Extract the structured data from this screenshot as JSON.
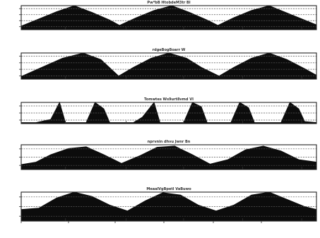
{
  "chart_data": [
    {
      "type": "area",
      "title": "Pw*bB HtobdeM3tr Bl",
      "y_ticks": [
        "",
        "",
        "",
        ""
      ],
      "ylim": [
        0,
        1
      ],
      "grid": true,
      "x": [
        0,
        0.06,
        0.12,
        0.18,
        0.24,
        0.3,
        0.333,
        0.39,
        0.45,
        0.51,
        0.57,
        0.63,
        0.666,
        0.72,
        0.78,
        0.84,
        0.9,
        0.96,
        1.0
      ],
      "values": [
        0.15,
        0.45,
        0.75,
        1.0,
        0.72,
        0.4,
        0.18,
        0.5,
        0.8,
        1.0,
        0.72,
        0.4,
        0.18,
        0.5,
        0.8,
        1.0,
        0.7,
        0.4,
        0.2
      ]
    },
    {
      "type": "area",
      "title": "rdgeBogBoarr W",
      "y_ticks": [
        "",
        "",
        "",
        ""
      ],
      "ylim": [
        0,
        1
      ],
      "grid": true,
      "x": [
        0,
        0.07,
        0.14,
        0.21,
        0.27,
        0.33,
        0.38,
        0.44,
        0.5,
        0.56,
        0.61,
        0.67,
        0.72,
        0.78,
        0.84,
        0.9,
        0.96,
        1.0
      ],
      "values": [
        0.1,
        0.45,
        0.8,
        1.0,
        0.75,
        0.12,
        0.45,
        0.8,
        1.0,
        0.8,
        0.45,
        0.12,
        0.45,
        0.8,
        1.0,
        0.75,
        0.4,
        0.15
      ]
    },
    {
      "type": "area",
      "title": "Tomwtes Ws9urt8vmd VI",
      "y_ticks": [
        "",
        "",
        ""
      ],
      "ylim": [
        0,
        1
      ],
      "grid": true,
      "x": [
        0,
        0.05,
        0.1,
        0.13,
        0.15,
        0.22,
        0.25,
        0.28,
        0.3,
        0.38,
        0.41,
        0.45,
        0.47,
        0.55,
        0.58,
        0.61,
        0.63,
        0.71,
        0.74,
        0.77,
        0.79,
        0.88,
        0.91,
        0.94,
        0.96,
        1.0
      ],
      "values": [
        0.05,
        0.05,
        0.2,
        1.0,
        0.05,
        0.05,
        1.0,
        0.7,
        0.05,
        0.05,
        0.3,
        1.0,
        0.05,
        0.05,
        1.0,
        0.8,
        0.05,
        0.05,
        1.0,
        0.75,
        0.05,
        0.05,
        1.0,
        0.7,
        0.1,
        0.05
      ]
    },
    {
      "type": "area",
      "title": "nprvnin dhvu Jwnr Bn",
      "y_ticks": [
        "",
        "",
        ""
      ],
      "ylim": [
        0,
        1
      ],
      "grid": true,
      "x": [
        0,
        0.05,
        0.1,
        0.16,
        0.22,
        0.28,
        0.34,
        0.4,
        0.46,
        0.52,
        0.58,
        0.64,
        0.7,
        0.76,
        0.82,
        0.88,
        0.94,
        1.0
      ],
      "values": [
        0.2,
        0.3,
        0.6,
        0.85,
        0.92,
        0.6,
        0.25,
        0.55,
        0.9,
        0.95,
        0.6,
        0.22,
        0.4,
        0.8,
        0.95,
        0.75,
        0.4,
        0.3
      ]
    },
    {
      "type": "area",
      "title": "MeaalVgBpetl VaBuwo",
      "y_ticks": [
        "",
        "",
        ""
      ],
      "ylim": [
        0,
        1
      ],
      "grid": true,
      "x_ticks": [
        "",
        "",
        "",
        "",
        "",
        ""
      ],
      "x": [
        0,
        0.06,
        0.12,
        0.18,
        0.24,
        0.3,
        0.36,
        0.42,
        0.48,
        0.54,
        0.6,
        0.66,
        0.72,
        0.78,
        0.84,
        0.9,
        0.96,
        1.0
      ],
      "values": [
        0.4,
        0.45,
        0.8,
        1.0,
        0.85,
        0.55,
        0.35,
        0.7,
        0.98,
        0.9,
        0.55,
        0.35,
        0.55,
        0.9,
        1.0,
        0.75,
        0.5,
        0.4
      ]
    }
  ]
}
